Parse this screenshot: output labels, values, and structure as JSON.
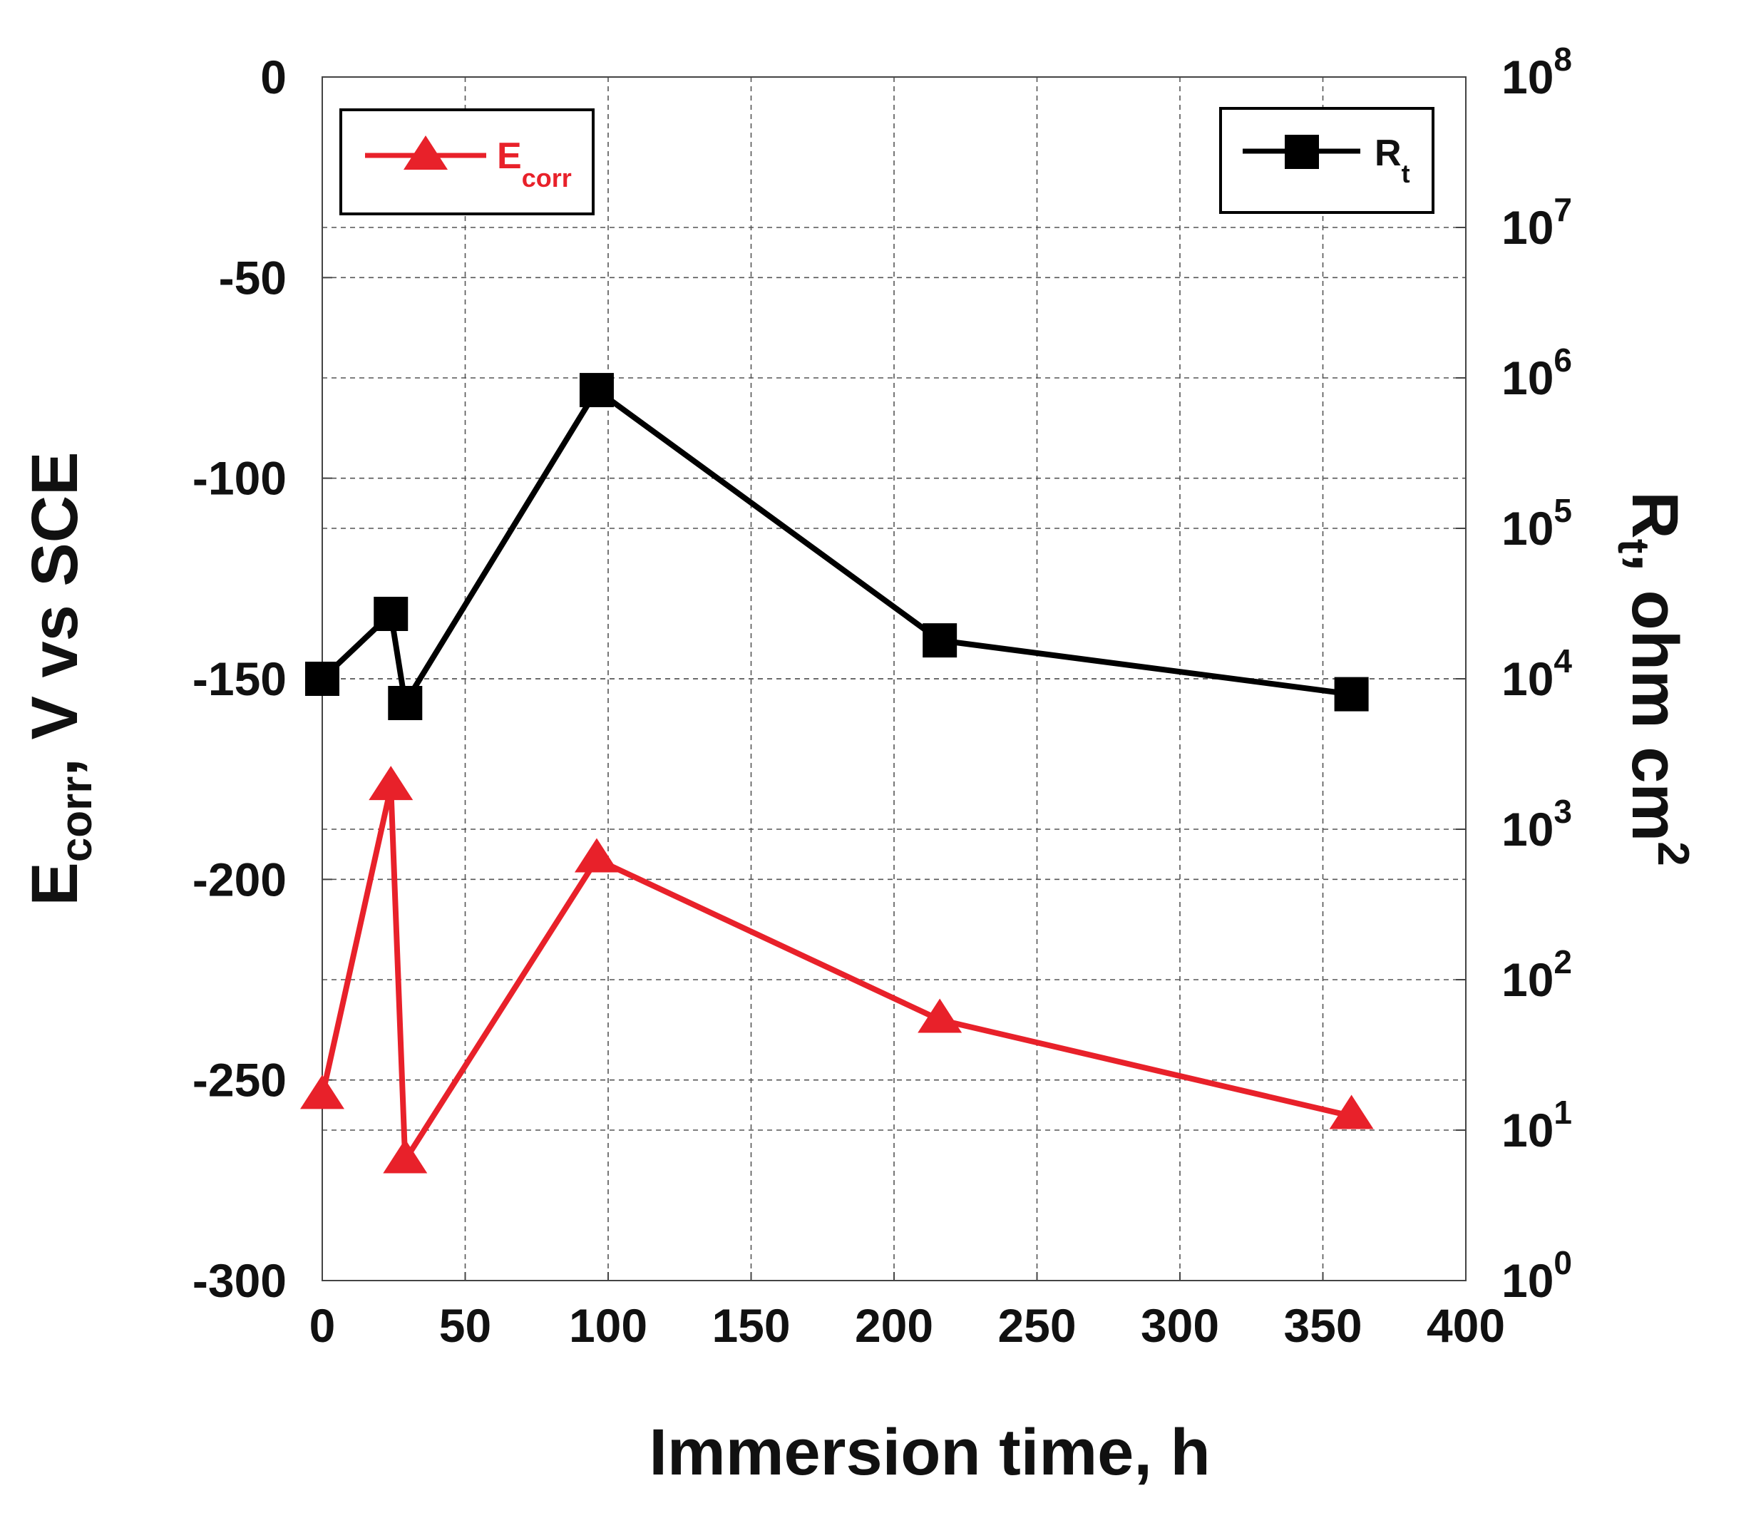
{
  "chart_data": {
    "type": "line",
    "xlabel": "Immersion time, h",
    "x_ticks": [
      0,
      50,
      100,
      150,
      200,
      250,
      300,
      350,
      400
    ],
    "xlim": [
      0,
      400
    ],
    "y_left": {
      "label_main": "E",
      "label_sub": "corr",
      "label_rest": ", V vs SCE",
      "ylim": [
        -300,
        0
      ],
      "ticks": [
        0,
        -50,
        -100,
        -150,
        -200,
        -250,
        -300
      ]
    },
    "y_right": {
      "label_main": "R",
      "label_sub": "t",
      "label_rest": ", ohm cm",
      "label_sup": "2",
      "scale": "log",
      "exponents": [
        0,
        1,
        2,
        3,
        4,
        5,
        6,
        7,
        8
      ],
      "tick_base": "10"
    },
    "series": [
      {
        "name": "E",
        "name_sub": "corr",
        "axis": "left",
        "color": "#e8212a",
        "marker": "triangle",
        "x": [
          0,
          24,
          29,
          96,
          216,
          360
        ],
        "values": [
          -254,
          -177,
          -270,
          -195,
          -235,
          -259
        ]
      },
      {
        "name": "R",
        "name_sub": "t",
        "axis": "right",
        "color": "#000000",
        "marker": "square",
        "x": [
          0,
          24,
          29,
          96,
          216,
          360
        ],
        "values": [
          10000,
          27000,
          6900,
          830000,
          18000,
          7900
        ]
      }
    ]
  }
}
